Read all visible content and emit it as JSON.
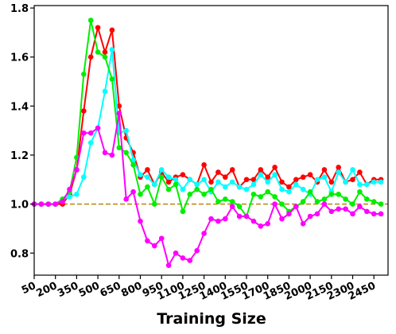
{
  "chart_data": {
    "type": "line",
    "title": "",
    "xlabel": "Training Size",
    "ylabel": "",
    "x": [
      50,
      100,
      150,
      200,
      250,
      300,
      350,
      400,
      450,
      500,
      550,
      600,
      650,
      700,
      750,
      800,
      850,
      900,
      950,
      1000,
      1050,
      1100,
      1150,
      1200,
      1250,
      1300,
      1350,
      1400,
      1450,
      1500,
      1550,
      1600,
      1650,
      1700,
      1750,
      1800,
      1850,
      1900,
      1950,
      2000,
      2050,
      2100,
      2150,
      2200,
      2250,
      2300,
      2350,
      2400,
      2450,
      2500
    ],
    "x_ticks": [
      50,
      200,
      350,
      500,
      650,
      800,
      950,
      1100,
      1250,
      1400,
      1550,
      1700,
      1850,
      2000,
      2150,
      2300,
      2450
    ],
    "y_ticks": [
      0.8,
      1.0,
      1.2,
      1.4,
      1.6,
      1.8
    ],
    "ylim": [
      0.71,
      1.81
    ],
    "xlim": [
      50,
      2550
    ],
    "grid": false,
    "reference_line": {
      "y": 1.0,
      "color": "#b8860b",
      "style": "dashed"
    },
    "series": [
      {
        "color": "#ff0000",
        "values": [
          1.0,
          1.0,
          1.0,
          1.0,
          1.0,
          1.04,
          1.14,
          1.38,
          1.6,
          1.72,
          1.62,
          1.71,
          1.4,
          1.27,
          1.21,
          1.11,
          1.14,
          1.08,
          1.13,
          1.09,
          1.11,
          1.12,
          1.1,
          1.08,
          1.16,
          1.09,
          1.13,
          1.11,
          1.14,
          1.07,
          1.1,
          1.1,
          1.14,
          1.11,
          1.15,
          1.09,
          1.07,
          1.1,
          1.11,
          1.12,
          1.09,
          1.14,
          1.09,
          1.15,
          1.09,
          1.1,
          1.13,
          1.08,
          1.1,
          1.1
        ]
      },
      {
        "color": "#00ffff",
        "values": [
          1.0,
          1.0,
          1.0,
          1.0,
          1.02,
          1.03,
          1.04,
          1.11,
          1.25,
          1.31,
          1.46,
          1.63,
          1.29,
          1.3,
          1.18,
          1.12,
          1.11,
          1.08,
          1.14,
          1.11,
          1.1,
          1.06,
          1.1,
          1.08,
          1.1,
          1.05,
          1.09,
          1.07,
          1.09,
          1.07,
          1.06,
          1.08,
          1.12,
          1.09,
          1.12,
          1.06,
          1.05,
          1.08,
          1.06,
          1.04,
          1.1,
          1.11,
          1.05,
          1.13,
          1.09,
          1.14,
          1.08,
          1.08,
          1.09,
          1.09
        ]
      },
      {
        "color": "#00ee00",
        "values": [
          1.0,
          1.0,
          1.0,
          1.0,
          1.02,
          1.05,
          1.19,
          1.53,
          1.75,
          1.62,
          1.6,
          1.51,
          1.23,
          1.21,
          1.16,
          1.04,
          1.07,
          1.0,
          1.11,
          1.06,
          1.08,
          0.97,
          1.04,
          1.06,
          1.04,
          1.06,
          1.01,
          1.02,
          1.01,
          0.99,
          0.95,
          1.04,
          1.03,
          1.05,
          1.03,
          1.0,
          0.97,
          0.99,
          1.01,
          1.05,
          1.01,
          1.02,
          1.04,
          1.04,
          1.02,
          1.0,
          1.05,
          1.02,
          1.01,
          1.0
        ]
      },
      {
        "color": "#ff00ff",
        "values": [
          1.0,
          1.0,
          1.0,
          1.0,
          1.01,
          1.06,
          1.14,
          1.29,
          1.29,
          1.31,
          1.21,
          1.2,
          1.37,
          1.02,
          1.05,
          0.93,
          0.85,
          0.83,
          0.86,
          0.75,
          0.8,
          0.78,
          0.77,
          0.81,
          0.88,
          0.94,
          0.93,
          0.94,
          0.99,
          0.95,
          0.95,
          0.93,
          0.91,
          0.92,
          1.0,
          0.94,
          0.96,
          0.99,
          0.92,
          0.95,
          0.96,
          1.0,
          0.97,
          0.98,
          0.98,
          0.96,
          0.99,
          0.97,
          0.96,
          0.96
        ]
      }
    ]
  }
}
